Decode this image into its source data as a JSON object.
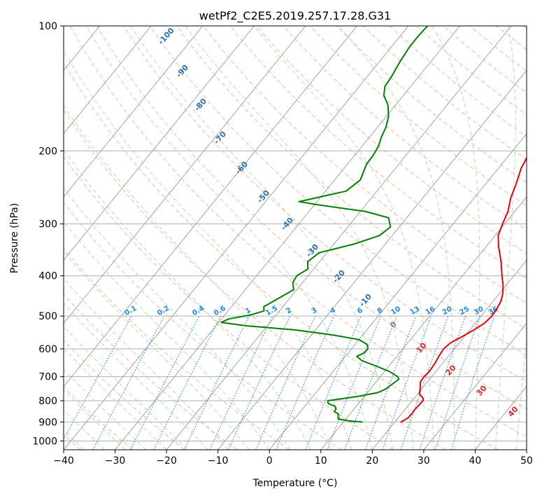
{
  "chart_data": {
    "type": "line",
    "subtype": "skew-t log-p",
    "title": "wetPf2_C2E5.2019.257.17.28.G31",
    "xlabel": "Temperature (°C)",
    "ylabel": "Pressure (hPa)",
    "xlim": [
      -40,
      50
    ],
    "ylim_hpa": [
      1050,
      100
    ],
    "log_y": true,
    "grid": true,
    "x_ticks": [
      -40,
      -30,
      -20,
      -10,
      0,
      10,
      20,
      30,
      40,
      50
    ],
    "x_tick_labels": [
      "−40",
      "−30",
      "−20",
      "−10",
      "0",
      "10",
      "20",
      "30",
      "40",
      "50"
    ],
    "y_ticks": [
      1000,
      900,
      800,
      700,
      600,
      500,
      400,
      300,
      200,
      100
    ],
    "y_tick_labels": [
      "1000",
      "900",
      "800",
      "700",
      "600",
      "500",
      "400",
      "300",
      "200",
      "100"
    ],
    "mixing_ratio_labels": [
      "0.1",
      "0.2",
      "0.4",
      "0.6",
      "1",
      "1.5",
      "2",
      "3",
      "4",
      "6",
      "8",
      "10",
      "13",
      "16",
      "20",
      "25",
      "30",
      "36"
    ],
    "dry_adiabat_labels": [
      "-100",
      "-90",
      "-80",
      "-70",
      "-60",
      "-50",
      "-40",
      "-30",
      "-20",
      "-10",
      "0",
      "10",
      "20",
      "30",
      "40"
    ],
    "colors": {
      "temperature": "#e8000b",
      "dewpoint": "#008000",
      "isotherm": "#9a9a9a",
      "dry_adiabat": "#f4a582",
      "moist_adiabat": "#a6d8a6",
      "mixing_ratio": "#1e88e5",
      "mixing_label": "#1e88e5",
      "dry_label_cold": "#2a6fb0",
      "dry_label_zero": "#808080",
      "dry_label_warm": "#d62728"
    },
    "series": [
      {
        "key": "temperature",
        "points": [
          [
            900,
            21.2
          ],
          [
            880,
            21.9
          ],
          [
            860,
            22.0
          ],
          [
            840,
            21.9
          ],
          [
            820,
            22.0
          ],
          [
            800,
            22.1
          ],
          [
            790,
            21.8
          ],
          [
            770,
            20.3
          ],
          [
            750,
            19.7
          ],
          [
            720,
            18.6
          ],
          [
            700,
            18.5
          ],
          [
            680,
            18.7
          ],
          [
            650,
            18.5
          ],
          [
            620,
            18.1
          ],
          [
            600,
            17.9
          ],
          [
            580,
            18.3
          ],
          [
            560,
            19.6
          ],
          [
            540,
            20.8
          ],
          [
            520,
            21.8
          ],
          [
            500,
            22.1
          ],
          [
            480,
            21.9
          ],
          [
            460,
            21.5
          ],
          [
            440,
            20.6
          ],
          [
            420,
            19.3
          ],
          [
            400,
            17.7
          ],
          [
            370,
            15.3
          ],
          [
            340,
            12.4
          ],
          [
            320,
            10.6
          ],
          [
            300,
            9.6
          ],
          [
            280,
            8.7
          ],
          [
            260,
            7.1
          ],
          [
            240,
            5.9
          ],
          [
            220,
            4.4
          ],
          [
            200,
            3.5
          ],
          [
            180,
            2.7
          ],
          [
            160,
            1.6
          ],
          [
            145,
            1.0
          ],
          [
            132,
            0.2
          ],
          [
            125,
            -0.6
          ],
          [
            120,
            -1.3
          ],
          [
            112,
            -1.7
          ],
          [
            106,
            -0.7
          ],
          [
            100,
            0.5
          ]
        ]
      },
      {
        "key": "dewpoint",
        "points": [
          [
            900,
            13.6
          ],
          [
            895,
            11.0
          ],
          [
            885,
            8.5
          ],
          [
            870,
            8.0
          ],
          [
            860,
            7.7
          ],
          [
            850,
            6.6
          ],
          [
            838,
            6.5
          ],
          [
            825,
            5.9
          ],
          [
            812,
            4.1
          ],
          [
            800,
            3.6
          ],
          [
            793,
            5.5
          ],
          [
            780,
            9.0
          ],
          [
            765,
            12.0
          ],
          [
            750,
            13.0
          ],
          [
            730,
            13.5
          ],
          [
            710,
            14.0
          ],
          [
            700,
            13.4
          ],
          [
            680,
            10.9
          ],
          [
            660,
            7.5
          ],
          [
            640,
            3.8
          ],
          [
            625,
            2.2
          ],
          [
            615,
            3.0
          ],
          [
            600,
            3.2
          ],
          [
            585,
            2.3
          ],
          [
            570,
            0.0
          ],
          [
            555,
            -6.0
          ],
          [
            540,
            -14.0
          ],
          [
            528,
            -24.0
          ],
          [
            518,
            -29.5
          ],
          [
            508,
            -28.6
          ],
          [
            497,
            -25.0
          ],
          [
            486,
            -23.0
          ],
          [
            475,
            -23.7
          ],
          [
            455,
            -22.3
          ],
          [
            432,
            -20.6
          ],
          [
            415,
            -21.9
          ],
          [
            400,
            -22.2
          ],
          [
            385,
            -21.1
          ],
          [
            370,
            -22.3
          ],
          [
            352,
            -21.5
          ],
          [
            335,
            -16.0
          ],
          [
            320,
            -12.5
          ],
          [
            305,
            -11.7
          ],
          [
            290,
            -13.5
          ],
          [
            280,
            -19.0
          ],
          [
            270,
            -29.0
          ],
          [
            265,
            -33.5
          ],
          [
            258,
            -30.0
          ],
          [
            250,
            -26.0
          ],
          [
            235,
            -25.0
          ],
          [
            215,
            -26.3
          ],
          [
            205,
            -26.4
          ],
          [
            195,
            -26.8
          ],
          [
            185,
            -27.7
          ],
          [
            175,
            -28.4
          ],
          [
            165,
            -29.6
          ],
          [
            155,
            -31.5
          ],
          [
            147,
            -33.8
          ],
          [
            140,
            -35.0
          ],
          [
            132,
            -35.3
          ],
          [
            122,
            -36.0
          ],
          [
            112,
            -36.5
          ],
          [
            106,
            -36.5
          ],
          [
            100,
            -36.3
          ]
        ]
      }
    ]
  }
}
